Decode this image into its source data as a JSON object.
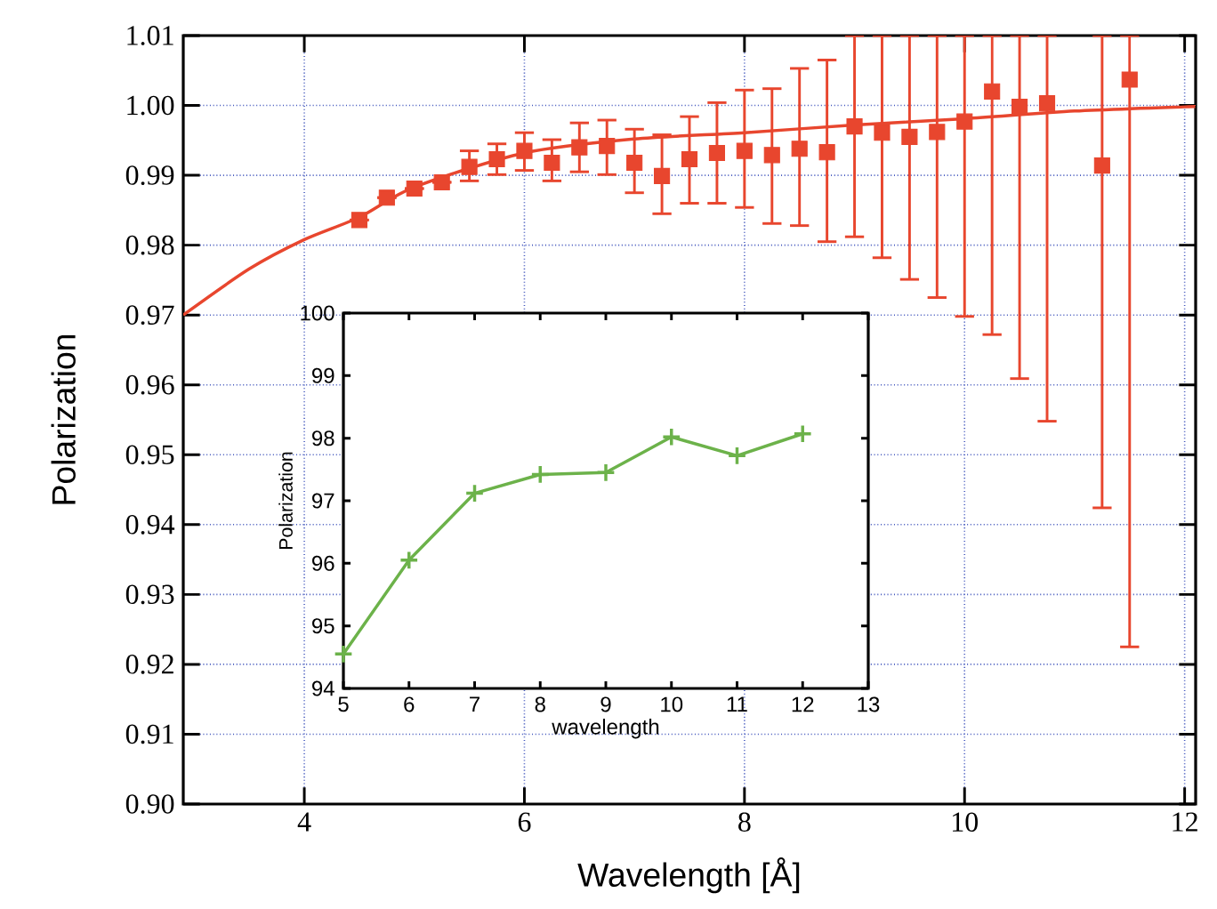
{
  "chart_data": [
    {
      "type": "scatter",
      "xlabel": "Wavelength [Å]",
      "ylabel": "Polarization",
      "xlim": [
        2.9,
        12.1
      ],
      "ylim": [
        0.9,
        1.01
      ],
      "xticks": [
        4,
        6,
        8,
        10,
        12
      ],
      "yticks": [
        {
          "value": 0.9,
          "label": "0.90"
        },
        0.91,
        0.92,
        0.93,
        0.94,
        0.95,
        0.96,
        0.97,
        0.98,
        0.99,
        {
          "value": 1.0,
          "label": "1.00"
        },
        1.01
      ],
      "grid": true,
      "series": [
        {
          "type": "scatter",
          "color": "#e8462e",
          "marker": "square",
          "x": [
            4.5,
            4.75,
            5.0,
            5.25,
            5.5,
            5.75,
            6.0,
            6.25,
            6.5,
            6.75,
            7.0,
            7.25,
            7.5,
            7.75,
            8.0,
            8.25,
            8.5,
            8.75,
            9.0,
            9.25,
            9.5,
            9.75,
            10.0,
            10.25,
            10.5,
            10.75,
            11.25,
            11.5
          ],
          "values": [
            0.9836,
            0.9868,
            0.9881,
            0.989,
            0.9912,
            0.9923,
            0.9935,
            0.9918,
            0.994,
            0.9942,
            0.9918,
            0.9899,
            0.9923,
            0.9932,
            0.9935,
            0.9929,
            0.9938,
            0.9933,
            0.997,
            0.9961,
            0.9955,
            0.9962,
            0.9977,
            1.002,
            0.9998,
            1.0003,
            0.9914,
            1.0037
          ],
          "errors": [
            null,
            null,
            null,
            null,
            [
              0.9892,
              0.9935
            ],
            [
              0.9901,
              0.9945
            ],
            [
              0.9907,
              0.9961
            ],
            [
              0.9892,
              0.9951
            ],
            [
              0.9905,
              0.9975
            ],
            [
              0.9901,
              0.9979
            ],
            [
              0.9875,
              0.9966
            ],
            [
              0.9845,
              0.9958
            ],
            [
              0.986,
              0.9984
            ],
            [
              0.986,
              1.0004
            ],
            [
              0.9854,
              1.0022
            ],
            [
              0.9831,
              1.0024
            ],
            [
              0.9828,
              1.0053
            ],
            [
              0.9805,
              1.0065
            ],
            [
              0.9812,
              1.01
            ],
            [
              0.9782,
              1.01
            ],
            [
              0.9751,
              1.01
            ],
            [
              0.9725,
              1.01
            ],
            [
              0.9698,
              1.01
            ],
            [
              0.9672,
              1.01
            ],
            [
              0.9609,
              1.01
            ],
            [
              0.9548,
              1.01
            ],
            [
              0.9424,
              1.01
            ],
            [
              0.9225,
              1.01
            ]
          ]
        },
        {
          "type": "line",
          "color": "#e8462e",
          "marker": "none",
          "x": [
            2.9,
            3.5,
            4.0,
            4.5,
            5.0,
            6.0,
            7.0,
            8.0,
            9.0,
            10.0,
            11.0,
            12.0,
            12.1
          ],
          "values": [
            0.97,
            0.9766,
            0.9808,
            0.984,
            0.9883,
            0.9932,
            0.9952,
            0.9961,
            0.9972,
            0.9981,
            0.9992,
            0.9998,
            0.9998
          ]
        }
      ]
    },
    {
      "type": "line",
      "xlabel": "wavelength",
      "ylabel": "Polarization",
      "xlim": [
        5,
        13
      ],
      "ylim": [
        94,
        100
      ],
      "xticks": [
        5,
        6,
        7,
        8,
        9,
        10,
        11,
        12,
        13
      ],
      "yticks": [
        94,
        95,
        96,
        97,
        98,
        99,
        100
      ],
      "marker": "cross",
      "color": "#6cb24a",
      "x": [
        5,
        6,
        7,
        8,
        9,
        10,
        11,
        12
      ],
      "values": [
        94.55,
        96.05,
        97.12,
        97.42,
        97.45,
        98.02,
        97.72,
        98.07
      ]
    }
  ]
}
